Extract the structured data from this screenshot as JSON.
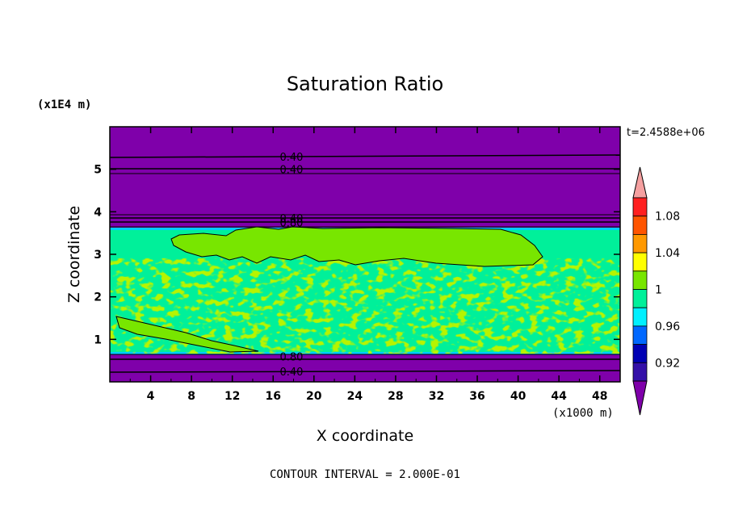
{
  "chart_data": {
    "type": "heatmap",
    "title": "Saturation Ratio",
    "xlabel": "X coordinate",
    "ylabel": "Z coordinate",
    "x_units": "(x1000 m)",
    "y_units": "(x1E4 m)",
    "time_label": "t=2.4588e+06",
    "footer": "CONTOUR INTERVAL = 2.000E-01",
    "xlim": [
      0,
      50
    ],
    "ylim": [
      0,
      6
    ],
    "x_ticks": [
      "4",
      "8",
      "12",
      "16",
      "20",
      "24",
      "28",
      "32",
      "36",
      "40",
      "44",
      "48"
    ],
    "y_ticks": [
      "1",
      "2",
      "3",
      "4",
      "5"
    ],
    "contour_labels": [
      {
        "text": "0.40",
        "x": 17.8,
        "z": 5.3
      },
      {
        "text": "0.40",
        "x": 17.8,
        "z": 5.0
      },
      {
        "text": "0.40",
        "x": 17.8,
        "z": 3.85
      },
      {
        "text": "0.80",
        "x": 17.8,
        "z": 3.75
      },
      {
        "text": "0.80",
        "x": 17.8,
        "z": 0.6
      },
      {
        "text": "0.40",
        "x": 17.8,
        "z": 0.25
      }
    ],
    "colorbar": {
      "levels": [
        0.92,
        0.94,
        0.96,
        0.98,
        1.0,
        1.02,
        1.04,
        1.06,
        1.08,
        1.1
      ],
      "tick_labels": [
        "0.92",
        "0.96",
        "1",
        "1.04",
        "1.08"
      ],
      "colors": [
        "#7f00aa",
        "#3410a8",
        "#0000b4",
        "#0068ff",
        "#00f0ff",
        "#00f09a",
        "#78e600",
        "#ffff00",
        "#ff9900",
        "#ff5500",
        "#ff2020",
        "#f5a0a0"
      ]
    },
    "regions": {
      "upper_dry_layer": {
        "z": [
          3.6,
          6.0
        ],
        "value": "< 0.92"
      },
      "lower_dry_layer": {
        "z": [
          0.0,
          0.65
        ],
        "value": "< 0.92"
      },
      "cloud_layer": {
        "z": [
          0.65,
          3.6
        ],
        "value": "0.98 – 1.02"
      }
    }
  }
}
